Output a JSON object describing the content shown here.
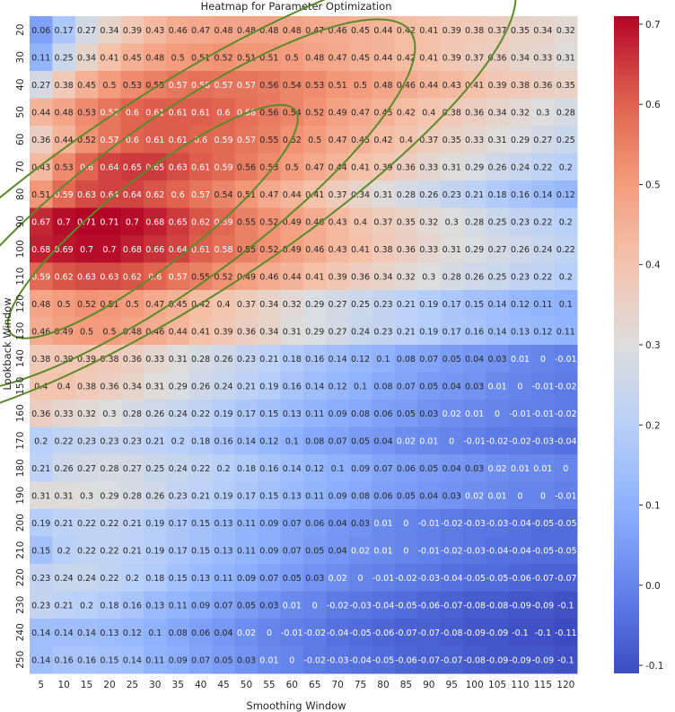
{
  "chart_data": {
    "type": "heatmap",
    "title": "Heatmap for Parameter Optimization",
    "xlabel": "Smoothing Window",
    "ylabel": "Lookback Window",
    "x": [
      5,
      10,
      15,
      20,
      25,
      30,
      35,
      40,
      45,
      50,
      55,
      60,
      65,
      70,
      75,
      80,
      85,
      90,
      95,
      100,
      105,
      110,
      115,
      120
    ],
    "y": [
      20,
      30,
      40,
      50,
      60,
      70,
      80,
      90,
      100,
      110,
      120,
      130,
      140,
      150,
      160,
      170,
      180,
      190,
      200,
      210,
      220,
      230,
      240,
      250
    ],
    "values": [
      [
        0.06,
        0.17,
        0.27,
        0.34,
        0.39,
        0.43,
        0.46,
        0.47,
        0.48,
        0.48,
        0.48,
        0.48,
        0.47,
        0.46,
        0.45,
        0.44,
        0.42,
        0.41,
        0.39,
        0.38,
        0.37,
        0.35,
        0.34,
        0.32
      ],
      [
        0.11,
        0.25,
        0.34,
        0.41,
        0.45,
        0.48,
        0.5,
        0.51,
        0.52,
        0.51,
        0.51,
        0.5,
        0.48,
        0.47,
        0.45,
        0.44,
        0.42,
        0.41,
        0.39,
        0.37,
        0.36,
        0.34,
        0.33,
        0.31
      ],
      [
        0.27,
        0.38,
        0.45,
        0.5,
        0.53,
        0.55,
        0.57,
        0.58,
        0.57,
        0.57,
        0.56,
        0.54,
        0.53,
        0.51,
        0.5,
        0.48,
        0.46,
        0.44,
        0.43,
        0.41,
        0.39,
        0.38,
        0.36,
        0.35
      ],
      [
        0.44,
        0.48,
        0.53,
        0.57,
        0.6,
        0.61,
        0.61,
        0.61,
        0.6,
        0.58,
        0.56,
        0.54,
        0.52,
        0.49,
        0.47,
        0.45,
        0.42,
        0.4,
        0.38,
        0.36,
        0.34,
        0.32,
        0.3,
        0.28
      ],
      [
        0.36,
        0.44,
        0.52,
        0.57,
        0.6,
        0.61,
        0.61,
        0.6,
        0.59,
        0.57,
        0.55,
        0.52,
        0.5,
        0.47,
        0.45,
        0.42,
        0.4,
        0.37,
        0.35,
        0.33,
        0.31,
        0.29,
        0.27,
        0.25
      ],
      [
        0.43,
        0.53,
        0.6,
        0.64,
        0.65,
        0.65,
        0.63,
        0.61,
        0.59,
        0.56,
        0.53,
        0.5,
        0.47,
        0.44,
        0.41,
        0.39,
        0.36,
        0.33,
        0.31,
        0.29,
        0.26,
        0.24,
        0.22,
        0.2
      ],
      [
        0.51,
        0.59,
        0.63,
        0.64,
        0.64,
        0.62,
        0.6,
        0.57,
        0.54,
        0.51,
        0.47,
        0.44,
        0.41,
        0.37,
        0.34,
        0.31,
        0.28,
        0.26,
        0.23,
        0.21,
        0.18,
        0.16,
        0.14,
        0.12
      ],
      [
        0.67,
        0.7,
        0.71,
        0.71,
        0.7,
        0.68,
        0.65,
        0.62,
        0.59,
        0.55,
        0.52,
        0.49,
        0.46,
        0.43,
        0.4,
        0.37,
        0.35,
        0.32,
        0.3,
        0.28,
        0.25,
        0.23,
        0.22,
        0.2
      ],
      [
        0.68,
        0.69,
        0.7,
        0.7,
        0.68,
        0.66,
        0.64,
        0.61,
        0.58,
        0.55,
        0.52,
        0.49,
        0.46,
        0.43,
        0.41,
        0.38,
        0.36,
        0.33,
        0.31,
        0.29,
        0.27,
        0.26,
        0.24,
        0.22
      ],
      [
        0.59,
        0.62,
        0.63,
        0.63,
        0.62,
        0.6,
        0.57,
        0.55,
        0.52,
        0.49,
        0.46,
        0.44,
        0.41,
        0.39,
        0.36,
        0.34,
        0.32,
        0.3,
        0.28,
        0.26,
        0.25,
        0.23,
        0.22,
        0.2
      ],
      [
        0.48,
        0.5,
        0.52,
        0.51,
        0.5,
        0.47,
        0.45,
        0.42,
        0.4,
        0.37,
        0.34,
        0.32,
        0.29,
        0.27,
        0.25,
        0.23,
        0.21,
        0.19,
        0.17,
        0.15,
        0.14,
        0.12,
        0.11,
        0.1
      ],
      [
        0.46,
        0.49,
        0.5,
        0.5,
        0.48,
        0.46,
        0.44,
        0.41,
        0.39,
        0.36,
        0.34,
        0.31,
        0.29,
        0.27,
        0.24,
        0.23,
        0.21,
        0.19,
        0.17,
        0.16,
        0.14,
        0.13,
        0.12,
        0.11
      ],
      [
        0.38,
        0.39,
        0.39,
        0.38,
        0.36,
        0.33,
        0.31,
        0.28,
        0.26,
        0.23,
        0.21,
        0.18,
        0.16,
        0.14,
        0.12,
        0.1,
        0.08,
        0.07,
        0.05,
        0.04,
        0.03,
        0.01,
        0,
        -0.01
      ],
      [
        0.4,
        0.4,
        0.38,
        0.36,
        0.34,
        0.31,
        0.29,
        0.26,
        0.24,
        0.21,
        0.19,
        0.16,
        0.14,
        0.12,
        0.1,
        0.08,
        0.07,
        0.05,
        0.04,
        0.03,
        0.01,
        0,
        -0.01,
        -0.02
      ],
      [
        0.36,
        0.33,
        0.32,
        0.3,
        0.28,
        0.26,
        0.24,
        0.22,
        0.19,
        0.17,
        0.15,
        0.13,
        0.11,
        0.09,
        0.08,
        0.06,
        0.05,
        0.03,
        0.02,
        0.01,
        0,
        -0.01,
        -0.01,
        -0.02
      ],
      [
        0.2,
        0.22,
        0.23,
        0.23,
        0.23,
        0.21,
        0.2,
        0.18,
        0.16,
        0.14,
        0.12,
        0.1,
        0.08,
        0.07,
        0.05,
        0.04,
        0.02,
        0.01,
        0,
        -0.01,
        -0.02,
        -0.02,
        -0.03,
        -0.04
      ],
      [
        0.21,
        0.26,
        0.27,
        0.28,
        0.27,
        0.25,
        0.24,
        0.22,
        0.2,
        0.18,
        0.16,
        0.14,
        0.12,
        0.1,
        0.09,
        0.07,
        0.06,
        0.05,
        0.04,
        0.03,
        0.02,
        0.01,
        0.01,
        0
      ],
      [
        0.31,
        0.31,
        0.3,
        0.29,
        0.28,
        0.26,
        0.23,
        0.21,
        0.19,
        0.17,
        0.15,
        0.13,
        0.11,
        0.09,
        0.08,
        0.06,
        0.05,
        0.04,
        0.03,
        0.02,
        0.01,
        0,
        0,
        -0.01
      ],
      [
        0.19,
        0.21,
        0.22,
        0.22,
        0.21,
        0.19,
        0.17,
        0.15,
        0.13,
        0.11,
        0.09,
        0.07,
        0.06,
        0.04,
        0.03,
        0.01,
        0,
        -0.01,
        -0.02,
        -0.03,
        -0.03,
        -0.04,
        -0.05,
        -0.05
      ],
      [
        0.15,
        0.2,
        0.22,
        0.22,
        0.21,
        0.19,
        0.17,
        0.15,
        0.13,
        0.11,
        0.09,
        0.07,
        0.05,
        0.04,
        0.02,
        0.01,
        0,
        -0.01,
        -0.02,
        -0.03,
        -0.04,
        -0.04,
        -0.05,
        -0.05
      ],
      [
        0.23,
        0.24,
        0.24,
        0.22,
        0.2,
        0.18,
        0.15,
        0.13,
        0.11,
        0.09,
        0.07,
        0.05,
        0.03,
        0.02,
        0,
        -0.01,
        -0.02,
        -0.03,
        -0.04,
        -0.05,
        -0.05,
        -0.06,
        -0.07,
        -0.07
      ],
      [
        0.23,
        0.21,
        0.2,
        0.18,
        0.16,
        0.13,
        0.11,
        0.09,
        0.07,
        0.05,
        0.03,
        0.01,
        0,
        -0.02,
        -0.03,
        -0.04,
        -0.05,
        -0.06,
        -0.07,
        -0.08,
        -0.08,
        -0.09,
        -0.09,
        -0.1
      ],
      [
        0.14,
        0.14,
        0.14,
        0.13,
        0.12,
        0.1,
        0.08,
        0.06,
        0.04,
        0.02,
        0,
        -0.01,
        -0.02,
        -0.04,
        -0.05,
        -0.06,
        -0.07,
        -0.07,
        -0.08,
        -0.09,
        -0.09,
        -0.1,
        -0.1,
        -0.11
      ],
      [
        0.14,
        0.16,
        0.16,
        0.15,
        0.14,
        0.11,
        0.09,
        0.07,
        0.05,
        0.03,
        0.01,
        0,
        -0.02,
        -0.03,
        -0.04,
        -0.05,
        -0.06,
        -0.07,
        -0.07,
        -0.08,
        -0.09,
        -0.09,
        -0.09,
        -0.1
      ]
    ],
    "colormap": "coolwarm",
    "vmin": -0.11,
    "vmax": 0.71,
    "colorbar_ticks": [
      -0.1,
      0.0,
      0.1,
      0.2,
      0.3,
      0.4,
      0.5,
      0.6,
      0.7
    ],
    "annotations": "cell values shown in each cell",
    "contour_overlay": {
      "color": "#5a8a2a",
      "rings": 3,
      "shape": "concentric ellipses around peak near smoothing 15-20, lookback 90-100"
    }
  }
}
